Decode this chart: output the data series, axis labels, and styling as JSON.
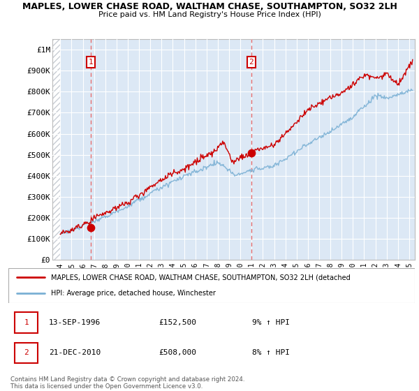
{
  "title": "MAPLES, LOWER CHASE ROAD, WALTHAM CHASE, SOUTHAMPTON, SO32 2LH",
  "subtitle": "Price paid vs. HM Land Registry's House Price Index (HPI)",
  "ylabel_ticks": [
    "£0",
    "£100K",
    "£200K",
    "£300K",
    "£400K",
    "£500K",
    "£600K",
    "£700K",
    "£800K",
    "£900K",
    "£1M"
  ],
  "ytick_values": [
    0,
    100000,
    200000,
    300000,
    400000,
    500000,
    600000,
    700000,
    800000,
    900000,
    1000000
  ],
  "ylim": [
    0,
    1050000
  ],
  "xlim_start": 1993.3,
  "xlim_end": 2025.5,
  "xticks": [
    1994,
    1995,
    1996,
    1997,
    1998,
    1999,
    2000,
    2001,
    2002,
    2003,
    2004,
    2005,
    2006,
    2007,
    2008,
    2009,
    2010,
    2011,
    2012,
    2013,
    2014,
    2015,
    2016,
    2017,
    2018,
    2019,
    2020,
    2021,
    2022,
    2023,
    2024,
    2025
  ],
  "transaction1_x": 1996.7,
  "transaction1_y": 152500,
  "transaction1_label": "1",
  "transaction1_date": "13-SEP-1996",
  "transaction1_price": "£152,500",
  "transaction1_hpi": "9% ↑ HPI",
  "transaction2_x": 2010.97,
  "transaction2_y": 508000,
  "transaction2_label": "2",
  "transaction2_date": "21-DEC-2010",
  "transaction2_price": "£508,000",
  "transaction2_hpi": "8% ↑ HPI",
  "line1_label": "MAPLES, LOWER CHASE ROAD, WALTHAM CHASE, SOUTHAMPTON, SO32 2LH (detached",
  "line2_label": "HPI: Average price, detached house, Winchester",
  "footer": "Contains HM Land Registry data © Crown copyright and database right 2024.\nThis data is licensed under the Open Government Licence v3.0.",
  "plot_bg_color": "#dce8f5",
  "grid_color": "#ffffff",
  "red_line_color": "#cc0000",
  "blue_line_color": "#7ab0d4",
  "hatch_color": "#c8cdd4",
  "hatch_boundary_x": 1994.0
}
